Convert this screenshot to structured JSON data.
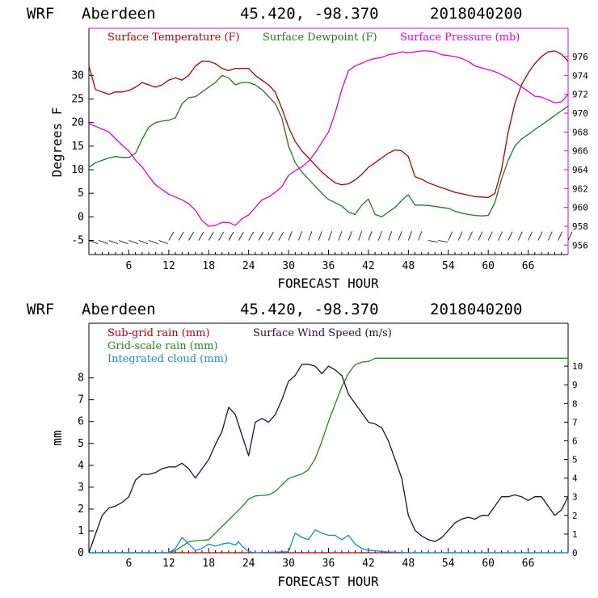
{
  "colors": {
    "temp": "#b00000",
    "dew": "#1f7a1f",
    "pres": "#e000e0",
    "wind_barb": "#000000",
    "subgrid": "#b00000",
    "grid": "#1f8a1f",
    "cloud": "#1a8ad8",
    "wind": "#2a0a40",
    "frame_left": "#000000",
    "frame_right_top": "#e000e0",
    "frame_right_bottom": "#000000"
  },
  "chart_data": [
    {
      "type": "line",
      "header": {
        "model": "WRF",
        "site": "Aberdeen",
        "coords": "45.420, -98.370",
        "init": "2018040200"
      },
      "ylabel": "Degrees F",
      "xlabel": "FORECAST HOUR",
      "xlim": [
        0,
        72
      ],
      "ylim": [
        -8,
        40
      ],
      "ylim_right": [
        955,
        979
      ],
      "xticks": [
        6,
        12,
        18,
        24,
        30,
        36,
        42,
        48,
        54,
        60,
        66
      ],
      "yticks": [
        -5,
        0,
        5,
        10,
        15,
        20,
        25,
        30
      ],
      "yticks_right": [
        956,
        958,
        960,
        962,
        964,
        966,
        968,
        970,
        972,
        974,
        976
      ],
      "legend": [
        "Surface Temperature (F)",
        "Surface Dewpoint (F)",
        "Surface Pressure (mb)"
      ],
      "series": [
        {
          "name": "Surface Temperature (F)",
          "axis": "left",
          "x": [
            0,
            1,
            2,
            3,
            4,
            5,
            6,
            7,
            8,
            9,
            10,
            11,
            12,
            13,
            14,
            15,
            16,
            17,
            18,
            19,
            20,
            21,
            22,
            23,
            24,
            25,
            26,
            27,
            28,
            29,
            30,
            31,
            32,
            33,
            34,
            35,
            36,
            37,
            38,
            39,
            40,
            41,
            42,
            43,
            44,
            45,
            46,
            47,
            48,
            49,
            50,
            51,
            52,
            53,
            54,
            55,
            56,
            57,
            58,
            59,
            60,
            61,
            62,
            63,
            64,
            65,
            66,
            67,
            68,
            69,
            70,
            71,
            72
          ],
          "values": [
            32,
            27,
            26.5,
            26,
            26.5,
            26.5,
            26.8,
            27.5,
            28.5,
            28,
            27.5,
            28,
            29,
            29.5,
            29,
            30,
            32,
            33,
            33,
            32.5,
            31.5,
            31,
            31.5,
            31.5,
            31.5,
            30,
            29,
            28,
            26.5,
            23,
            19,
            16,
            14,
            12.5,
            11,
            9.5,
            8.3,
            7.2,
            6.8,
            7,
            7.8,
            9,
            10.5,
            11.5,
            12.5,
            13.5,
            14.2,
            14,
            12.8,
            8.5,
            8,
            7.2,
            6.7,
            6.2,
            5.7,
            5.2,
            4.9,
            4.6,
            4.3,
            4.2,
            4.1,
            5,
            10,
            18,
            24,
            28,
            30.5,
            32.5,
            34,
            35,
            35.2,
            34.5,
            33
          ]
        },
        {
          "name": "Surface Dewpoint (F)",
          "axis": "left",
          "x": [
            0,
            1,
            2,
            3,
            4,
            5,
            6,
            7,
            8,
            9,
            10,
            11,
            12,
            13,
            14,
            15,
            16,
            17,
            18,
            19,
            20,
            21,
            22,
            23,
            24,
            25,
            26,
            27,
            28,
            29,
            30,
            31,
            32,
            33,
            34,
            35,
            36,
            37,
            38,
            39,
            40,
            41,
            42,
            43,
            44,
            45,
            46,
            47,
            48,
            49,
            50,
            51,
            52,
            53,
            54,
            55,
            56,
            57,
            58,
            59,
            60,
            61,
            62,
            63,
            64,
            65,
            66,
            67,
            68,
            69,
            70,
            71,
            72
          ],
          "values": [
            10.5,
            11.5,
            12,
            12.5,
            12.8,
            12.6,
            12.6,
            13.5,
            16.5,
            19,
            20,
            20.3,
            20.5,
            21,
            24,
            25.3,
            25.5,
            26.5,
            27.5,
            28.5,
            30,
            29.5,
            28,
            28.5,
            28.5,
            28,
            27,
            25.5,
            24,
            21,
            15,
            11.5,
            9.5,
            8,
            6.5,
            5,
            3.7,
            3,
            2.3,
            1,
            0.5,
            2.5,
            3.8,
            0.5,
            0,
            1,
            2,
            3.5,
            4.7,
            2.5,
            2.5,
            2.4,
            2.2,
            2,
            1.8,
            1.2,
            0.8,
            0.5,
            0.3,
            0.2,
            0.3,
            3,
            8,
            12,
            15,
            16.5,
            17.5,
            18.5,
            19.5,
            20.5,
            21.5,
            22.5,
            23.5
          ]
        },
        {
          "name": "Surface Pressure (mb)",
          "axis": "right",
          "x": [
            0,
            1,
            2,
            3,
            4,
            5,
            6,
            7,
            8,
            9,
            10,
            11,
            12,
            13,
            14,
            15,
            16,
            17,
            18,
            19,
            20,
            21,
            22,
            23,
            24,
            25,
            26,
            27,
            28,
            29,
            30,
            31,
            32,
            33,
            34,
            35,
            36,
            37,
            38,
            39,
            40,
            41,
            42,
            43,
            44,
            45,
            46,
            47,
            48,
            49,
            50,
            51,
            52,
            53,
            54,
            55,
            56,
            57,
            58,
            59,
            60,
            61,
            62,
            63,
            64,
            65,
            66,
            67,
            68,
            69,
            70,
            71,
            72
          ],
          "values": [
            968.9,
            968.6,
            968.3,
            968,
            967.3,
            966.6,
            966,
            965,
            964.3,
            963.3,
            962.4,
            961.9,
            961.4,
            961.1,
            960.8,
            960.4,
            959.7,
            958.6,
            958,
            958.1,
            958.4,
            958.4,
            958.1,
            958.8,
            959.2,
            960,
            960.8,
            961.1,
            961.6,
            962.2,
            963.4,
            963.9,
            964.3,
            964.9,
            965.8,
            966.9,
            968,
            970,
            972.5,
            974.5,
            975,
            975.3,
            975.6,
            975.8,
            975.9,
            976.2,
            976.3,
            976.5,
            976.4,
            976.5,
            976.6,
            976.6,
            976.5,
            976.2,
            976.1,
            976,
            975.8,
            975.5,
            975,
            974.8,
            974.6,
            974.4,
            974.1,
            973.7,
            973.3,
            972.8,
            972.3,
            971.8,
            971.7,
            971.4,
            971.1,
            971.2,
            972
          ]
        }
      ],
      "wind_barbs": "row of wind barbs along y = -5, from hour 0 to hour 72"
    },
    {
      "type": "line",
      "header": {
        "model": "WRF",
        "site": "Aberdeen",
        "coords": "45.420, -98.370",
        "init": "2018040200"
      },
      "ylabel": "mm",
      "xlabel": "FORECAST HOUR",
      "xlim": [
        0,
        72
      ],
      "ylim": [
        0,
        10.5
      ],
      "ylim_right": [
        0,
        12.3
      ],
      "xticks": [
        6,
        12,
        18,
        24,
        30,
        36,
        42,
        48,
        54,
        60,
        66
      ],
      "yticks": [
        0,
        1,
        2,
        3,
        4,
        5,
        6,
        7,
        8
      ],
      "yticks_right": [
        0,
        1,
        2,
        3,
        4,
        5,
        6,
        7,
        8,
        9,
        10
      ],
      "legend": [
        "Sub-grid rain (mm)",
        "Grid-scale rain (mm)",
        "Integrated cloud (mm)",
        "Surface Wind Speed (m/s)"
      ],
      "series": [
        {
          "name": "Sub-grid rain (mm)",
          "axis": "left",
          "x": [
            0,
            72
          ],
          "values": [
            0,
            0
          ]
        },
        {
          "name": "Grid-scale rain (mm)",
          "axis": "left",
          "x": [
            0,
            12,
            13,
            14,
            15,
            16,
            17,
            18,
            19,
            20,
            21,
            22,
            23,
            24,
            25,
            26,
            27,
            28,
            29,
            30,
            31,
            32,
            33,
            34,
            35,
            36,
            37,
            38,
            39,
            40,
            41,
            42,
            43,
            44,
            72
          ],
          "values": [
            0,
            0,
            0.1,
            0.3,
            0.5,
            0.55,
            0.57,
            0.6,
            0.9,
            1.2,
            1.5,
            1.8,
            2.1,
            2.45,
            2.6,
            2.62,
            2.65,
            2.8,
            3.1,
            3.4,
            3.5,
            3.6,
            3.8,
            4.3,
            5.1,
            6,
            6.8,
            7.6,
            8.2,
            8.6,
            8.72,
            8.75,
            8.9,
            8.9,
            8.9
          ]
        },
        {
          "name": "Integrated cloud (mm)",
          "axis": "left",
          "x": [
            0,
            12,
            13,
            14,
            15,
            16,
            17,
            18,
            19,
            20,
            21,
            22,
            22.5,
            23,
            24,
            25,
            30,
            31,
            32,
            33,
            34,
            35,
            36,
            37,
            38,
            39,
            40,
            41,
            42,
            43,
            44,
            48,
            60,
            72
          ],
          "values": [
            0,
            0,
            0.2,
            0.7,
            0.4,
            0.1,
            0.2,
            0.4,
            0.3,
            0.4,
            0.45,
            0.35,
            0.5,
            0.3,
            0.05,
            0,
            0.05,
            0.9,
            0.7,
            0.6,
            1.05,
            0.9,
            0.8,
            0.8,
            0.6,
            0.8,
            0.4,
            0.2,
            0.1,
            0.1,
            0.05,
            0,
            0,
            0
          ]
        },
        {
          "name": "Surface Wind Speed (m/s)",
          "axis": "right",
          "x": [
            0,
            1,
            2,
            3,
            4,
            5,
            6,
            7,
            8,
            9,
            10,
            11,
            12,
            13,
            14,
            15,
            16,
            17,
            18,
            19,
            20,
            21,
            22,
            23,
            24,
            25,
            26,
            27,
            28,
            29,
            30,
            31,
            32,
            33,
            34,
            35,
            36,
            37,
            38,
            39,
            40,
            41,
            42,
            43,
            44,
            45,
            46,
            47,
            48,
            49,
            50,
            51,
            52,
            53,
            54,
            55,
            56,
            57,
            58,
            59,
            60,
            61,
            62,
            63,
            64,
            65,
            66,
            67,
            68,
            69,
            70,
            71,
            72
          ],
          "values": [
            0,
            1,
            2,
            2.4,
            2.5,
            2.7,
            3,
            3.9,
            4.2,
            4.2,
            4.3,
            4.5,
            4.6,
            4.6,
            4.8,
            4.5,
            4,
            4.5,
            5,
            5.8,
            6.5,
            7.8,
            7.4,
            6.3,
            5.2,
            7,
            7.2,
            7,
            7.4,
            8.2,
            9.2,
            9.5,
            10.1,
            10.1,
            10,
            9.6,
            10,
            9.8,
            9.5,
            8.5,
            8,
            7.5,
            7,
            6.9,
            6.7,
            6,
            5,
            4,
            2,
            1.2,
            0.9,
            0.7,
            0.6,
            0.8,
            1.2,
            1.6,
            1.8,
            1.9,
            1.8,
            2,
            2,
            2.5,
            3,
            3,
            3.1,
            3,
            2.8,
            3,
            3,
            2.5,
            2,
            2.3,
            3
          ]
        }
      ]
    }
  ]
}
